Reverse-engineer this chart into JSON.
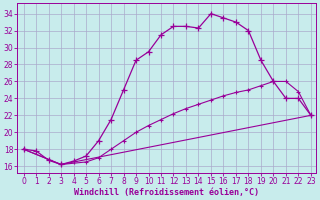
{
  "xlabel": "Windchill (Refroidissement éolien,°C)",
  "bg_color": "#c8ecec",
  "line_color": "#990099",
  "grid_color": "#aaaacc",
  "xlim_min": -0.5,
  "xlim_max": 23.4,
  "ylim_min": 15.2,
  "ylim_max": 35.2,
  "yticks": [
    16,
    18,
    20,
    22,
    24,
    26,
    28,
    30,
    32,
    34
  ],
  "xticks": [
    0,
    1,
    2,
    3,
    4,
    5,
    6,
    7,
    8,
    9,
    10,
    11,
    12,
    13,
    14,
    15,
    16,
    17,
    18,
    19,
    20,
    21,
    22,
    23
  ],
  "line1_x": [
    0,
    1,
    2,
    3,
    4,
    5,
    6,
    7,
    8,
    9,
    10,
    11,
    12,
    13,
    14,
    15,
    16,
    17,
    18,
    19,
    20,
    21,
    22,
    23
  ],
  "line1_y": [
    18.0,
    17.8,
    16.7,
    16.2,
    16.6,
    17.2,
    19.0,
    21.5,
    25.0,
    28.5,
    29.5,
    31.5,
    32.5,
    32.5,
    32.3,
    34.0,
    33.5,
    33.0,
    32.0,
    28.5,
    26.0,
    24.0,
    24.0,
    22.0
  ],
  "line2_x": [
    0,
    3,
    5,
    6,
    7,
    8,
    9,
    10,
    11,
    12,
    13,
    14,
    15,
    16,
    17,
    18,
    19,
    20,
    21,
    22,
    23
  ],
  "line2_y": [
    18.0,
    16.2,
    16.5,
    17.0,
    18.0,
    19.0,
    20.0,
    20.8,
    21.5,
    22.2,
    22.8,
    23.3,
    23.8,
    24.3,
    24.7,
    25.0,
    25.5,
    26.0,
    26.0,
    24.8,
    22.0
  ],
  "line3_x": [
    0,
    3,
    23
  ],
  "line3_y": [
    18.0,
    16.2,
    22.0
  ]
}
